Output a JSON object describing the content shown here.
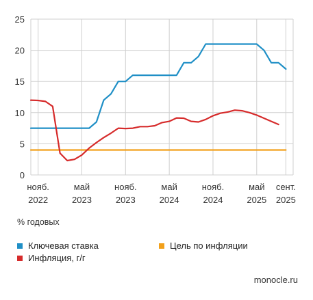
{
  "chart_data": {
    "type": "line",
    "ylim": [
      0,
      25
    ],
    "yticks": [
      0,
      5,
      10,
      15,
      20,
      25
    ],
    "grid": true,
    "x_range": [
      "2022-10",
      "2025-10"
    ],
    "x_ticks": [
      {
        "date": "2022-11",
        "line1": "нояб.",
        "line2": "2022"
      },
      {
        "date": "2023-05",
        "line1": "май",
        "line2": "2023"
      },
      {
        "date": "2023-11",
        "line1": "нояб.",
        "line2": "2023"
      },
      {
        "date": "2024-05",
        "line1": "май",
        "line2": "2024"
      },
      {
        "date": "2024-11",
        "line1": "нояб.",
        "line2": "2024"
      },
      {
        "date": "2025-05",
        "line1": "май",
        "line2": "2025"
      },
      {
        "date": "2025-09",
        "line1": "сент.",
        "line2": "2025"
      }
    ],
    "unit_label": "% годовых",
    "series": [
      {
        "name": "Ключевая ставка",
        "color": "#1f8fc6",
        "points": [
          [
            "2022-10",
            7.5
          ],
          [
            "2022-11",
            7.5
          ],
          [
            "2022-12",
            7.5
          ],
          [
            "2023-01",
            7.5
          ],
          [
            "2023-02",
            7.5
          ],
          [
            "2023-03",
            7.5
          ],
          [
            "2023-04",
            7.5
          ],
          [
            "2023-05",
            7.5
          ],
          [
            "2023-06",
            7.5
          ],
          [
            "2023-07",
            8.5
          ],
          [
            "2023-08",
            12
          ],
          [
            "2023-09",
            13
          ],
          [
            "2023-10",
            15
          ],
          [
            "2023-11",
            15
          ],
          [
            "2023-12",
            16
          ],
          [
            "2024-01",
            16
          ],
          [
            "2024-02",
            16
          ],
          [
            "2024-03",
            16
          ],
          [
            "2024-04",
            16
          ],
          [
            "2024-05",
            16
          ],
          [
            "2024-06",
            16
          ],
          [
            "2024-07",
            18
          ],
          [
            "2024-08",
            18
          ],
          [
            "2024-09",
            19
          ],
          [
            "2024-10",
            21
          ],
          [
            "2024-11",
            21
          ],
          [
            "2024-12",
            21
          ],
          [
            "2025-01",
            21
          ],
          [
            "2025-02",
            21
          ],
          [
            "2025-03",
            21
          ],
          [
            "2025-04",
            21
          ],
          [
            "2025-05",
            21
          ],
          [
            "2025-06",
            20
          ],
          [
            "2025-07",
            18
          ],
          [
            "2025-08",
            18
          ],
          [
            "2025-09",
            17
          ]
        ]
      },
      {
        "name": "Инфляция, г/г",
        "color": "#d62b2b",
        "points": [
          [
            "2022-10",
            12
          ],
          [
            "2022-11",
            11.95
          ],
          [
            "2022-12",
            11.8
          ],
          [
            "2023-01",
            11.0
          ],
          [
            "2023-02",
            3.5
          ],
          [
            "2023-03",
            2.3
          ],
          [
            "2023-04",
            2.5
          ],
          [
            "2023-05",
            3.2
          ],
          [
            "2023-06",
            4.3
          ],
          [
            "2023-07",
            5.2
          ],
          [
            "2023-08",
            6.0
          ],
          [
            "2023-09",
            6.7
          ],
          [
            "2023-10",
            7.5
          ],
          [
            "2023-11",
            7.45
          ],
          [
            "2023-12",
            7.5
          ],
          [
            "2024-01",
            7.75
          ],
          [
            "2024-02",
            7.75
          ],
          [
            "2024-03",
            7.9
          ],
          [
            "2024-04",
            8.4
          ],
          [
            "2024-05",
            8.6
          ],
          [
            "2024-06",
            9.15
          ],
          [
            "2024-07",
            9.1
          ],
          [
            "2024-08",
            8.6
          ],
          [
            "2024-09",
            8.5
          ],
          [
            "2024-10",
            8.9
          ],
          [
            "2024-11",
            9.5
          ],
          [
            "2024-12",
            9.9
          ],
          [
            "2025-01",
            10.1
          ],
          [
            "2025-02",
            10.4
          ],
          [
            "2025-03",
            10.3
          ],
          [
            "2025-04",
            10.0
          ],
          [
            "2025-05",
            9.6
          ],
          [
            "2025-06",
            9.1
          ],
          [
            "2025-07",
            8.6
          ],
          [
            "2025-08",
            8.1
          ]
        ]
      },
      {
        "name": "Цель по инфляции",
        "color": "#f2a01a",
        "points": [
          [
            "2022-10",
            4
          ],
          [
            "2025-09",
            4
          ]
        ]
      }
    ]
  },
  "legend": [
    {
      "label": "Ключевая ставка",
      "color": "#1f8fc6"
    },
    {
      "label": "Цель по инфляции",
      "color": "#f2a01a"
    },
    {
      "label": "Инфляция, г/г",
      "color": "#d62b2b"
    }
  ],
  "source": "monocle.ru"
}
